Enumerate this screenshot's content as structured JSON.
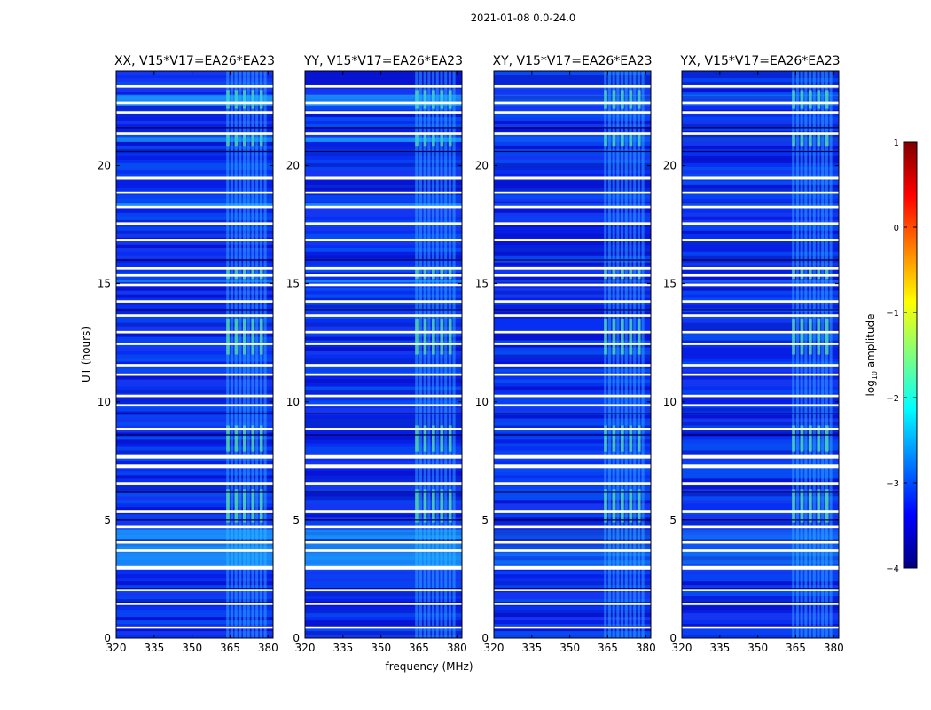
{
  "figure_title": "2021-01-08 0.0-24.0",
  "chart_data": [
    {
      "type": "heatmap",
      "title": "XX, V15*V17=EA26*EA23",
      "xlabel": "",
      "ylabel": "UT (hours)",
      "xlim": [
        320,
        382
      ],
      "ylim": [
        0,
        24
      ],
      "xticks": [
        320,
        335,
        350,
        365,
        380
      ],
      "yticks": [
        0,
        5,
        10,
        15,
        20
      ],
      "rfi_band_mhz": [
        363.5,
        380
      ],
      "white_gaps_ut": [
        [
          0.4,
          0.5
        ],
        [
          1.4,
          1.5
        ],
        [
          2.0,
          2.05
        ],
        [
          2.9,
          3.05
        ],
        [
          3.65,
          3.75
        ],
        [
          4.0,
          4.1
        ],
        [
          4.65,
          4.75
        ],
        [
          5.3,
          5.4
        ],
        [
          6.5,
          6.6
        ],
        [
          7.2,
          7.35
        ],
        [
          7.6,
          7.75
        ],
        [
          8.8,
          8.9
        ],
        [
          9.8,
          9.9
        ],
        [
          10.2,
          10.3
        ],
        [
          11.1,
          11.2
        ],
        [
          11.5,
          11.6
        ],
        [
          12.4,
          12.5
        ],
        [
          12.9,
          13.0
        ],
        [
          13.6,
          13.7
        ],
        [
          14.2,
          14.3
        ],
        [
          14.9,
          15.0
        ],
        [
          15.3,
          15.4
        ],
        [
          15.6,
          15.7
        ],
        [
          16.8,
          16.9
        ],
        [
          17.5,
          17.6
        ],
        [
          18.2,
          18.3
        ],
        [
          18.8,
          18.9
        ],
        [
          19.4,
          19.55
        ],
        [
          21.3,
          21.4
        ],
        [
          22.2,
          22.3
        ],
        [
          22.6,
          22.7
        ],
        [
          23.3,
          23.4
        ]
      ]
    },
    {
      "type": "heatmap",
      "title": "YY, V15*V17=EA26*EA23",
      "xlabel": "frequency (MHz)",
      "ylabel": "",
      "xlim": [
        320,
        382
      ],
      "ylim": [
        0,
        24
      ],
      "xticks": [
        320,
        335,
        350,
        365,
        380
      ],
      "yticks": [
        0,
        5,
        10,
        15,
        20
      ],
      "rfi_band_mhz": [
        363.5,
        380
      ],
      "white_gaps_ut": [
        [
          0.4,
          0.5
        ],
        [
          1.4,
          1.5
        ],
        [
          2.0,
          2.05
        ],
        [
          2.9,
          3.05
        ],
        [
          3.65,
          3.75
        ],
        [
          4.0,
          4.1
        ],
        [
          4.65,
          4.75
        ],
        [
          5.3,
          5.4
        ],
        [
          6.5,
          6.6
        ],
        [
          7.2,
          7.35
        ],
        [
          7.6,
          7.75
        ],
        [
          8.8,
          8.9
        ],
        [
          9.8,
          9.9
        ],
        [
          10.2,
          10.3
        ],
        [
          11.1,
          11.2
        ],
        [
          11.5,
          11.6
        ],
        [
          12.4,
          12.5
        ],
        [
          12.9,
          13.0
        ],
        [
          13.6,
          13.7
        ],
        [
          14.2,
          14.3
        ],
        [
          14.9,
          15.0
        ],
        [
          15.3,
          15.4
        ],
        [
          15.6,
          15.7
        ],
        [
          16.8,
          16.9
        ],
        [
          17.5,
          17.6
        ],
        [
          18.2,
          18.3
        ],
        [
          18.8,
          18.9
        ],
        [
          19.4,
          19.55
        ],
        [
          21.3,
          21.4
        ],
        [
          22.2,
          22.3
        ],
        [
          22.6,
          22.7
        ],
        [
          23.3,
          23.4
        ]
      ]
    },
    {
      "type": "heatmap",
      "title": "XY, V15*V17=EA26*EA23",
      "xlabel": "",
      "ylabel": "",
      "xlim": [
        320,
        382
      ],
      "ylim": [
        0,
        24
      ],
      "xticks": [
        320,
        335,
        350,
        365,
        380
      ],
      "yticks": [
        0,
        5,
        10,
        15,
        20
      ],
      "rfi_band_mhz": [
        363.5,
        380
      ],
      "white_gaps_ut": [
        [
          0.4,
          0.5
        ],
        [
          1.4,
          1.5
        ],
        [
          2.0,
          2.05
        ],
        [
          2.9,
          3.05
        ],
        [
          3.65,
          3.75
        ],
        [
          4.0,
          4.1
        ],
        [
          4.65,
          4.75
        ],
        [
          5.3,
          5.4
        ],
        [
          6.5,
          6.6
        ],
        [
          7.2,
          7.35
        ],
        [
          7.6,
          7.75
        ],
        [
          8.8,
          8.9
        ],
        [
          9.8,
          9.9
        ],
        [
          10.2,
          10.3
        ],
        [
          11.1,
          11.2
        ],
        [
          11.5,
          11.6
        ],
        [
          12.4,
          12.5
        ],
        [
          12.9,
          13.0
        ],
        [
          13.6,
          13.7
        ],
        [
          14.2,
          14.3
        ],
        [
          14.9,
          15.0
        ],
        [
          15.3,
          15.4
        ],
        [
          15.6,
          15.7
        ],
        [
          16.8,
          16.9
        ],
        [
          17.5,
          17.6
        ],
        [
          18.2,
          18.3
        ],
        [
          18.8,
          18.9
        ],
        [
          19.4,
          19.55
        ],
        [
          21.3,
          21.4
        ],
        [
          22.2,
          22.3
        ],
        [
          22.6,
          22.7
        ],
        [
          23.3,
          23.4
        ]
      ]
    },
    {
      "type": "heatmap",
      "title": "YX, V15*V17=EA26*EA23",
      "xlabel": "",
      "ylabel": "",
      "xlim": [
        320,
        382
      ],
      "ylim": [
        0,
        24
      ],
      "xticks": [
        320,
        335,
        350,
        365,
        380
      ],
      "yticks": [
        0,
        5,
        10,
        15,
        20
      ],
      "rfi_band_mhz": [
        363.5,
        380
      ],
      "white_gaps_ut": [
        [
          0.4,
          0.5
        ],
        [
          1.4,
          1.5
        ],
        [
          2.0,
          2.05
        ],
        [
          2.9,
          3.05
        ],
        [
          3.65,
          3.75
        ],
        [
          4.0,
          4.1
        ],
        [
          4.65,
          4.75
        ],
        [
          5.3,
          5.4
        ],
        [
          6.5,
          6.6
        ],
        [
          7.2,
          7.35
        ],
        [
          7.6,
          7.75
        ],
        [
          8.8,
          8.9
        ],
        [
          9.8,
          9.9
        ],
        [
          10.2,
          10.3
        ],
        [
          11.1,
          11.2
        ],
        [
          11.5,
          11.6
        ],
        [
          12.4,
          12.5
        ],
        [
          12.9,
          13.0
        ],
        [
          13.6,
          13.7
        ],
        [
          14.2,
          14.3
        ],
        [
          14.9,
          15.0
        ],
        [
          15.3,
          15.4
        ],
        [
          15.6,
          15.7
        ],
        [
          16.8,
          16.9
        ],
        [
          17.5,
          17.6
        ],
        [
          18.2,
          18.3
        ],
        [
          18.8,
          18.9
        ],
        [
          19.4,
          19.55
        ],
        [
          21.3,
          21.4
        ],
        [
          22.2,
          22.3
        ],
        [
          22.6,
          22.7
        ],
        [
          23.3,
          23.4
        ]
      ]
    }
  ],
  "colorbar": {
    "label_prefix": "log",
    "label_sub": "10",
    "label_suffix": " amplitude",
    "range": [
      -4,
      1
    ],
    "ticks": [
      "1",
      "0",
      "−1",
      "−2",
      "−3",
      "−4"
    ],
    "colormap": [
      "#00007f",
      "#0000ff",
      "#007fff",
      "#00ffff",
      "#7fff7f",
      "#ffff00",
      "#ff7f00",
      "#ff0000",
      "#7f0000"
    ]
  }
}
